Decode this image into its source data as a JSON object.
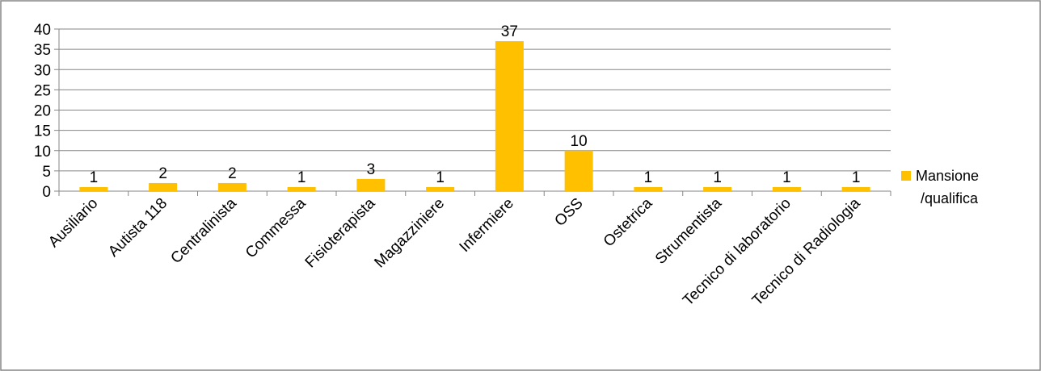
{
  "chart_data": {
    "type": "bar",
    "title": "",
    "xlabel": "",
    "ylabel": "",
    "categories": [
      "Ausiliario",
      "Autista 118",
      "Centralinista",
      "Commessa",
      "Fisioterapista",
      "Magazziniere",
      "Infermiere",
      "OSS",
      "Ostetrica",
      "Strumentista",
      "Tecnico di laboratorio",
      "Tecnico di Radiologia"
    ],
    "series": [
      {
        "name": "Mansione /qualifica",
        "values": [
          1,
          2,
          2,
          1,
          3,
          1,
          37,
          10,
          1,
          1,
          1,
          1
        ]
      }
    ],
    "ylim": [
      0,
      40
    ],
    "yticks": [
      0,
      5,
      10,
      15,
      20,
      25,
      30,
      35,
      40
    ],
    "grid": true,
    "data_labels": true,
    "legend": {
      "position": "right",
      "lines": [
        "Mansione",
        "/qualifica"
      ]
    },
    "colors": {
      "bar": "#FFC000",
      "grid": "#868686",
      "frame": "#868686"
    }
  }
}
